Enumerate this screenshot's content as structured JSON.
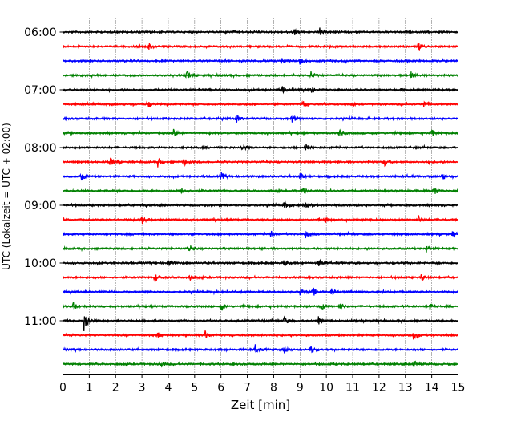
{
  "chart_data": {
    "type": "line",
    "xlabel": "Zeit  [min]",
    "ylabel": "UTC (Lokalzeit = UTC + 02:00)",
    "xlim": [
      0,
      15
    ],
    "x_ticks": [
      0,
      1,
      2,
      3,
      4,
      5,
      6,
      7,
      8,
      9,
      10,
      11,
      12,
      13,
      14,
      15
    ],
    "y_tick_labels": [
      "06:00",
      "07:00",
      "08:00",
      "09:00",
      "10:00",
      "11:00"
    ],
    "grid": "vertical dotted at each minute",
    "trace_interval_minutes": 15,
    "trace_colors": [
      "#000000",
      "#ff0000",
      "#0000ff",
      "#008000"
    ],
    "traces": [
      {
        "start": "06:00",
        "events": [
          8.75,
          9.75
        ]
      },
      {
        "start": "06:15",
        "events": [
          3.25,
          13.5
        ]
      },
      {
        "start": "06:30",
        "events": [
          8.3,
          9.0
        ]
      },
      {
        "start": "06:45",
        "events": [
          4.7,
          9.4,
          13.2
        ]
      },
      {
        "start": "07:00",
        "events": [
          8.3,
          9.4
        ]
      },
      {
        "start": "07:15",
        "events": [
          3.2,
          9.1,
          13.7
        ]
      },
      {
        "start": "07:30",
        "events": [
          6.6,
          8.7
        ]
      },
      {
        "start": "07:45",
        "events": [
          4.2,
          10.5,
          14.0
        ]
      },
      {
        "start": "08:00",
        "events": [
          6.8,
          9.2
        ]
      },
      {
        "start": "08:15",
        "events": [
          1.8,
          3.6,
          4.6,
          12.2
        ]
      },
      {
        "start": "08:30",
        "events": [
          0.7,
          6.0,
          9.0,
          14.4
        ]
      },
      {
        "start": "08:45",
        "events": [
          4.5,
          9.1,
          14.1
        ]
      },
      {
        "start": "09:00",
        "events": [
          8.4,
          9.2
        ]
      },
      {
        "start": "09:15",
        "events": [
          3.0,
          10.0,
          13.5
        ]
      },
      {
        "start": "09:30",
        "events": [
          7.9,
          9.2,
          14.8
        ]
      },
      {
        "start": "09:45",
        "events": [
          4.8,
          13.8
        ]
      },
      {
        "start": "10:00",
        "events": [
          4.0,
          8.4,
          9.7
        ]
      },
      {
        "start": "10:15",
        "events": [
          3.5,
          4.8,
          13.6
        ]
      },
      {
        "start": "10:30",
        "events": [
          9.0,
          9.5,
          10.2
        ]
      },
      {
        "start": "10:45",
        "events": [
          0.4,
          6.0,
          9.8,
          10.5,
          13.9
        ]
      },
      {
        "start": "11:00",
        "events": [
          0.8,
          8.4,
          9.7
        ]
      },
      {
        "start": "11:15",
        "events": [
          3.6,
          5.4,
          13.3
        ]
      },
      {
        "start": "11:30",
        "events": [
          7.3,
          8.4,
          9.4
        ]
      },
      {
        "start": "11:45",
        "events": [
          3.7,
          13.3
        ]
      }
    ]
  }
}
